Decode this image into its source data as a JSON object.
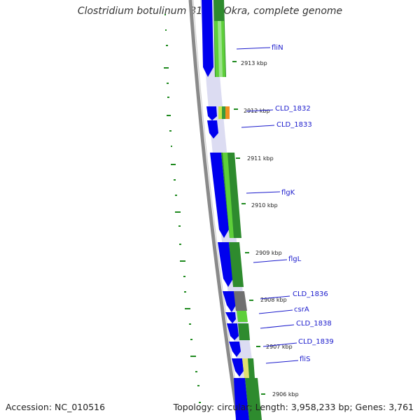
{
  "title": "Clostridium botulinum B1 str. Okra, complete genome",
  "accession": "Accession: NC_010516",
  "summary": "Topology: circular; Length: 3,958,233 bp; Genes: 3,761",
  "ticks": [
    "2913 kbp",
    "2912 kbp",
    "2911 kbp",
    "2910 kbp",
    "2909 kbp",
    "2908 kbp",
    "2907 kbp",
    "2906 kbp"
  ],
  "genes": [
    "fliN",
    "CLD_1832",
    "CLD_1833",
    "flgK",
    "flgL",
    "CLD_1836",
    "csrA",
    "CLD_1838",
    "CLD_1839",
    "fliS"
  ],
  "colors": {
    "cds_forward": "#0000ee",
    "feature_green_light": "#5ecf3a",
    "feature_green_dark": "#2f8f2a",
    "backbone": "#808080",
    "label": "#1a1acc",
    "gc_skew": "#1f8a1f"
  }
}
